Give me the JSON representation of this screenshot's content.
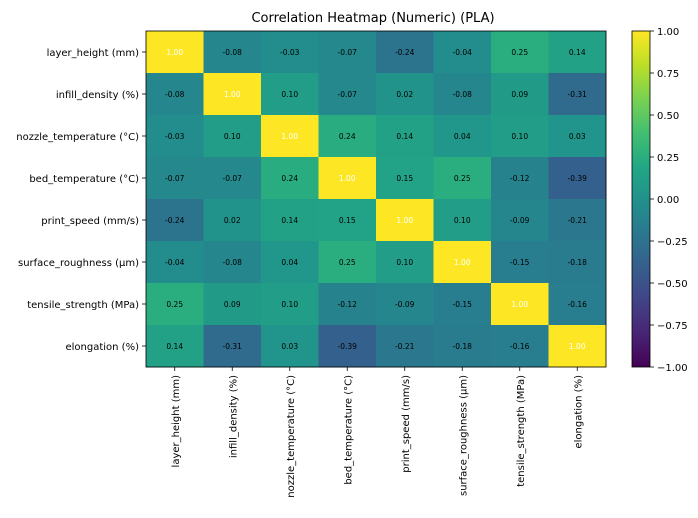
{
  "chart_data": {
    "type": "heatmap",
    "title": "Correlation Heatmap (Numeric) (PLA)",
    "row_labels": [
      "layer_height (mm)",
      "infill_density (%)",
      "nozzle_temperature (°C)",
      "bed_temperature (°C)",
      "print_speed (mm/s)",
      "surface_roughness (µm)",
      "tensile_strength (MPa)",
      "elongation (%)"
    ],
    "col_labels": [
      "layer_height (mm)",
      "infill_density (%)",
      "nozzle_temperature (°C)",
      "bed_temperature (°C)",
      "print_speed (mm/s)",
      "surface_roughness (µm)",
      "tensile_strength (MPa)",
      "elongation (%)"
    ],
    "values": [
      [
        1.0,
        -0.08,
        -0.03,
        -0.07,
        -0.24,
        -0.04,
        0.25,
        0.14
      ],
      [
        -0.08,
        1.0,
        0.1,
        -0.07,
        0.02,
        -0.08,
        0.09,
        -0.31
      ],
      [
        -0.03,
        0.1,
        1.0,
        0.24,
        0.14,
        0.04,
        0.1,
        0.03
      ],
      [
        -0.07,
        -0.07,
        0.24,
        1.0,
        0.15,
        0.25,
        -0.12,
        -0.39
      ],
      [
        -0.24,
        0.02,
        0.14,
        0.15,
        1.0,
        0.1,
        -0.09,
        -0.21
      ],
      [
        -0.04,
        -0.08,
        0.04,
        0.25,
        0.1,
        1.0,
        -0.15,
        -0.18
      ],
      [
        0.25,
        0.09,
        0.1,
        -0.12,
        -0.09,
        -0.15,
        1.0,
        -0.16
      ],
      [
        0.14,
        -0.31,
        0.03,
        -0.39,
        -0.21,
        -0.18,
        -0.16,
        1.0
      ]
    ],
    "value_format": "2 decimals",
    "colormap": "viridis",
    "vmin": -1.0,
    "vmax": 1.0,
    "colorbar_ticks": [
      "1.00",
      "0.75",
      "0.50",
      "0.25",
      "0.00",
      "−0.25",
      "−0.50",
      "−0.75",
      "−1.00"
    ],
    "colorbar_tick_values": [
      1.0,
      0.75,
      0.5,
      0.25,
      0.0,
      -0.25,
      -0.5,
      -0.75,
      -1.0
    ]
  }
}
